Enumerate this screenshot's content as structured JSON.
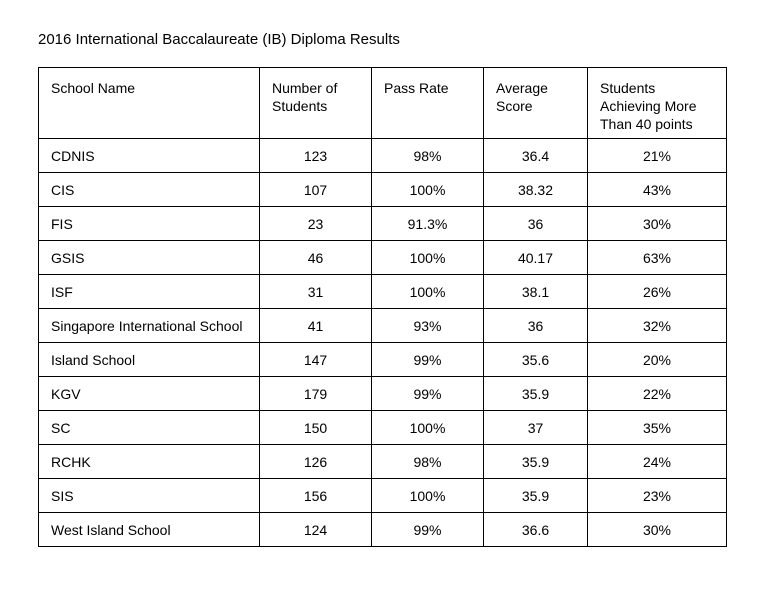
{
  "title": "2016 International Baccalaureate (IB) Diploma Results",
  "table": {
    "columns": [
      "School Name",
      "Number of Students",
      "Pass Rate",
      "Average Score",
      "Students Achieving More Than 40 points"
    ],
    "rows": [
      [
        "CDNIS",
        "123",
        "98%",
        "36.4",
        "21%"
      ],
      [
        "CIS",
        "107",
        "100%",
        "38.32",
        "43%"
      ],
      [
        "FIS",
        "23",
        "91.3%",
        "36",
        "30%"
      ],
      [
        "GSIS",
        "46",
        "100%",
        "40.17",
        "63%"
      ],
      [
        "ISF",
        "31",
        "100%",
        "38.1",
        "26%"
      ],
      [
        "Singapore International School",
        "41",
        "93%",
        "36",
        "32%"
      ],
      [
        "Island School",
        "147",
        "99%",
        "35.6",
        "20%"
      ],
      [
        "KGV",
        "179",
        "99%",
        "35.9",
        "22%"
      ],
      [
        "SC",
        "150",
        "100%",
        "37",
        "35%"
      ],
      [
        "RCHK",
        "126",
        "98%",
        "35.9",
        "24%"
      ],
      [
        "SIS",
        "156",
        "100%",
        "35.9",
        "23%"
      ],
      [
        "West Island School",
        "124",
        "99%",
        "36.6",
        "30%"
      ]
    ]
  }
}
